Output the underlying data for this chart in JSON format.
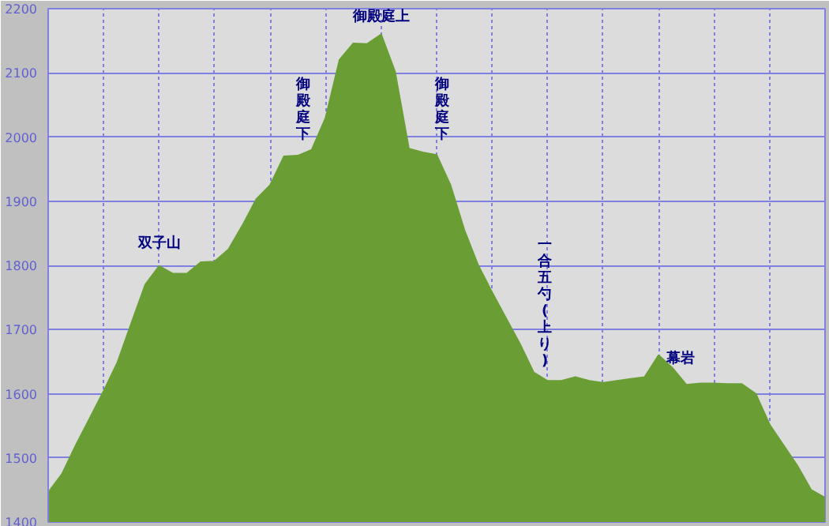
{
  "chart_data": {
    "type": "area",
    "color": "#6a9e35",
    "categories": [
      null,
      null,
      null,
      null,
      null,
      null,
      null,
      null,
      null,
      null,
      null,
      null,
      null,
      null,
      null,
      null,
      null,
      null,
      null,
      null,
      null,
      null,
      null,
      null,
      null,
      null,
      null,
      null,
      null,
      null,
      null,
      null,
      null,
      null,
      null,
      null,
      null,
      null,
      null,
      null,
      null,
      null,
      null,
      null,
      null,
      null,
      null,
      null,
      null,
      null,
      null,
      null,
      null,
      null,
      null,
      null,
      null
    ],
    "values": [
      1446,
      1475,
      1520,
      1562,
      1604,
      1649,
      1710,
      1770,
      1799,
      1787,
      1787,
      1805,
      1806,
      1825,
      1862,
      1903,
      1925,
      1970,
      1971,
      1980,
      2030,
      2120,
      2146,
      2145,
      2160,
      2102,
      1982,
      1976,
      1972,
      1925,
      1855,
      1800,
      1758,
      1718,
      1678,
      1633,
      1620,
      1620,
      1626,
      1620,
      1617,
      1620,
      1623,
      1626,
      1660,
      1640,
      1614,
      1616,
      1616,
      1615,
      1615,
      1600,
      1552,
      1520,
      1488,
      1450,
      1438
    ],
    "ylim": [
      1400,
      2200
    ],
    "yticks": [
      1400,
      1500,
      1600,
      1700,
      1800,
      1900,
      2000,
      2100,
      2200
    ],
    "grid": true,
    "tick_labels": "y",
    "annotations": [
      "双子山",
      "御殿庭下",
      "御殿庭上",
      "御殿庭下",
      "一合五勺(上り)",
      "幕岩"
    ]
  }
}
